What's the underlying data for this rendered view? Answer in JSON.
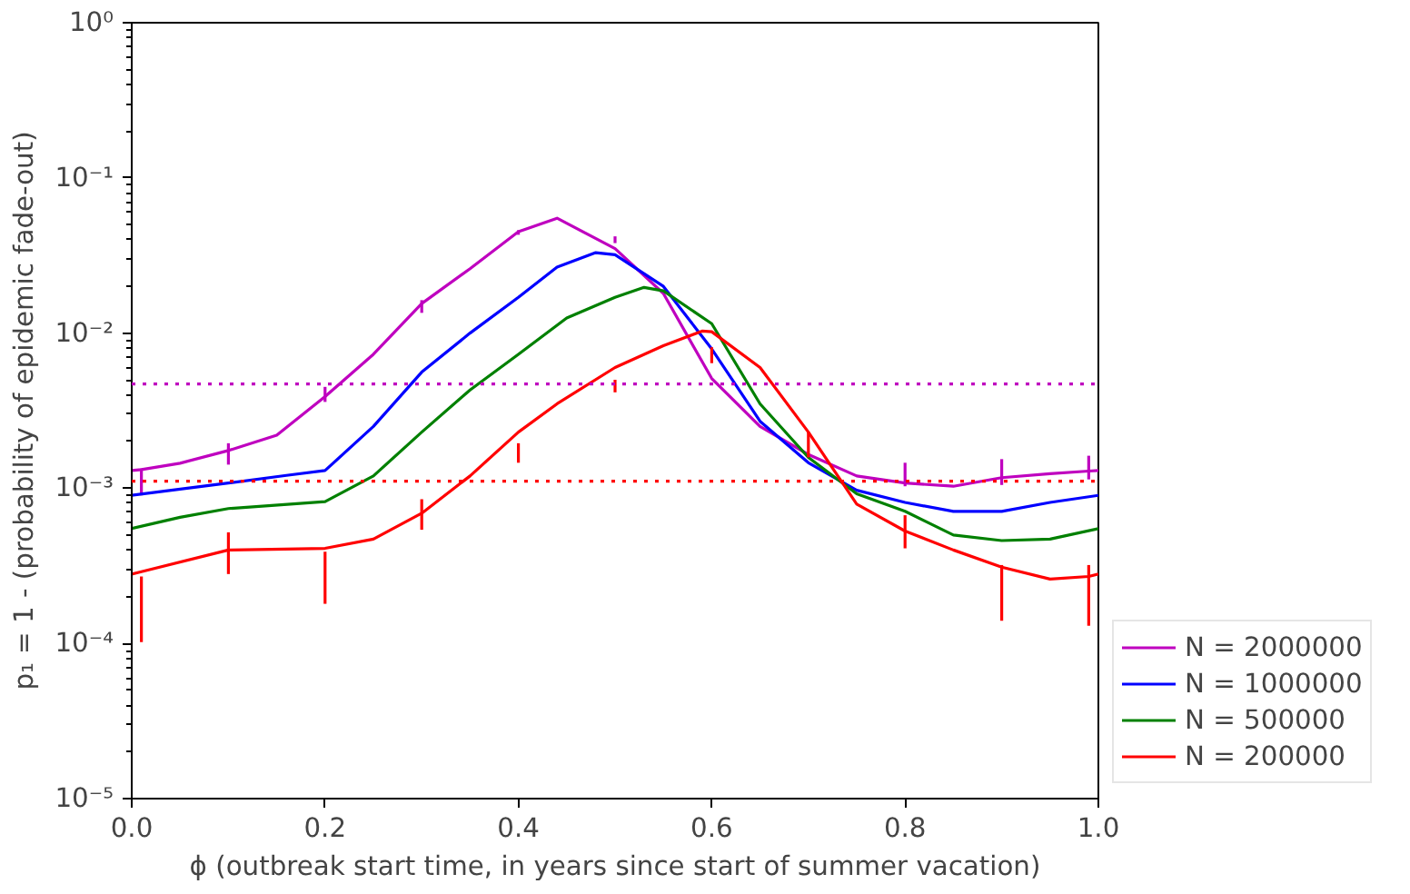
{
  "chart_data": {
    "type": "line",
    "xlabel": "ϕ (outbreak start time, in years since start of summer vacation)",
    "ylabel": "p₁ = 1 - (probability of epidemic fade-out)",
    "log": "y",
    "grid": false,
    "legend": "bottom right",
    "line_style": "solid",
    "marker": "none",
    "xlim": [
      0,
      1
    ],
    "ylim": [
      1e-05,
      1
    ],
    "xticks": [
      {
        "value": 0,
        "label": "0.0"
      },
      {
        "value": 0.2,
        "label": "0.2"
      },
      {
        "value": 0.4,
        "label": "0.4"
      },
      {
        "value": 0.6,
        "label": "0.6"
      },
      {
        "value": 0.8,
        "label": "0.8"
      },
      {
        "value": 1,
        "label": "1.0"
      }
    ],
    "yticks": [
      {
        "value": 1e-05,
        "label": "10⁻⁵"
      },
      {
        "value": 0.0001,
        "label": "10⁻⁴"
      },
      {
        "value": 0.001,
        "label": "10⁻³"
      },
      {
        "value": 0.01,
        "label": "10⁻²"
      },
      {
        "value": 0.1,
        "label": "10⁻¹"
      },
      {
        "value": 1,
        "label": "10⁰"
      }
    ],
    "ref_lines": [
      {
        "axis": "y",
        "value": 0.0047,
        "color": "#bf00bf",
        "line_style": "dotted"
      },
      {
        "axis": "y",
        "value": 0.00111,
        "color": "#ff0000",
        "line_style": "dotted"
      }
    ],
    "series": [
      {
        "name": "N = 2000000",
        "color": "#bf00bf",
        "x": [
          0,
          0.01,
          0.05,
          0.1,
          0.15,
          0.2,
          0.25,
          0.3,
          0.35,
          0.4,
          0.44,
          0.5,
          0.55,
          0.6,
          0.65,
          0.7,
          0.75,
          0.8,
          0.85,
          0.9,
          0.95,
          0.99,
          1.0
        ],
        "values": [
          0.0013,
          0.00132,
          0.00145,
          0.00175,
          0.0022,
          0.0039,
          0.0073,
          0.0155,
          0.026,
          0.045,
          0.055,
          0.035,
          0.018,
          0.0051,
          0.0025,
          0.00165,
          0.0012,
          0.00108,
          0.00103,
          0.00117,
          0.00124,
          0.00129,
          0.0013
        ],
        "errors": [
          null,
          [
            0.0009,
            0.00134
          ],
          null,
          [
            0.00142,
            0.00195
          ],
          null,
          [
            0.0036,
            0.0045
          ],
          null,
          [
            0.0135,
            0.0163
          ],
          null,
          [
            0.043,
            0.046
          ],
          null,
          [
            0.038,
            0.042
          ],
          null,
          null,
          null,
          null,
          null,
          [
            0.00103,
            0.00146
          ],
          null,
          [
            0.00105,
            0.00154
          ],
          null,
          [
            0.00114,
            0.00162
          ],
          null
        ]
      },
      {
        "name": "N = 1000000",
        "color": "#0000ff",
        "x": [
          0,
          0.1,
          0.16,
          0.2,
          0.25,
          0.3,
          0.35,
          0.4,
          0.44,
          0.48,
          0.5,
          0.55,
          0.6,
          0.65,
          0.7,
          0.75,
          0.8,
          0.85,
          0.9,
          0.95,
          1.0
        ],
        "values": [
          0.0009,
          0.00108,
          0.00121,
          0.0013,
          0.0025,
          0.0056,
          0.01,
          0.017,
          0.0266,
          0.033,
          0.032,
          0.02,
          0.0079,
          0.0027,
          0.00146,
          0.00097,
          0.00081,
          0.00071,
          0.00071,
          0.00081,
          0.0009
        ]
      },
      {
        "name": "N = 500000",
        "color": "#008000",
        "x": [
          0,
          0.05,
          0.1,
          0.2,
          0.25,
          0.3,
          0.35,
          0.4,
          0.45,
          0.5,
          0.53,
          0.55,
          0.6,
          0.65,
          0.7,
          0.75,
          0.8,
          0.85,
          0.9,
          0.95,
          1.0
        ],
        "values": [
          0.00055,
          0.00065,
          0.00074,
          0.00082,
          0.0012,
          0.0023,
          0.0043,
          0.0073,
          0.0125,
          0.017,
          0.0197,
          0.0187,
          0.0115,
          0.0035,
          0.00158,
          0.00092,
          0.00071,
          0.0005,
          0.00046,
          0.00047,
          0.00055
        ]
      },
      {
        "name": "N = 200000",
        "color": "#ff0000",
        "x": [
          0,
          0.01,
          0.1,
          0.2,
          0.25,
          0.3,
          0.35,
          0.4,
          0.44,
          0.5,
          0.55,
          0.59,
          0.6,
          0.65,
          0.7,
          0.75,
          0.8,
          0.85,
          0.9,
          0.95,
          0.99,
          1.0
        ],
        "values": [
          0.00028,
          0.00029,
          0.0004,
          0.00041,
          0.00047,
          0.00069,
          0.0012,
          0.0023,
          0.0035,
          0.006,
          0.0083,
          0.0103,
          0.0102,
          0.006,
          0.0023,
          0.00079,
          0.00053,
          0.0004,
          0.00031,
          0.00026,
          0.00027,
          0.00028
        ],
        "errors": [
          null,
          [
            0.000102,
            0.00027
          ],
          [
            0.00028,
            0.00052
          ],
          [
            0.00018,
            0.00039
          ],
          null,
          [
            0.00054,
            0.00085
          ],
          null,
          [
            0.00146,
            0.00195
          ],
          null,
          [
            0.00415,
            0.005
          ],
          null,
          null,
          [
            0.0064,
            0.0081
          ],
          null,
          [
            0.00158,
            0.0023
          ],
          null,
          [
            0.00041,
            0.00067
          ],
          null,
          [
            0.00014,
            0.00032
          ],
          null,
          [
            0.00013,
            0.00032
          ],
          null
        ]
      }
    ]
  }
}
